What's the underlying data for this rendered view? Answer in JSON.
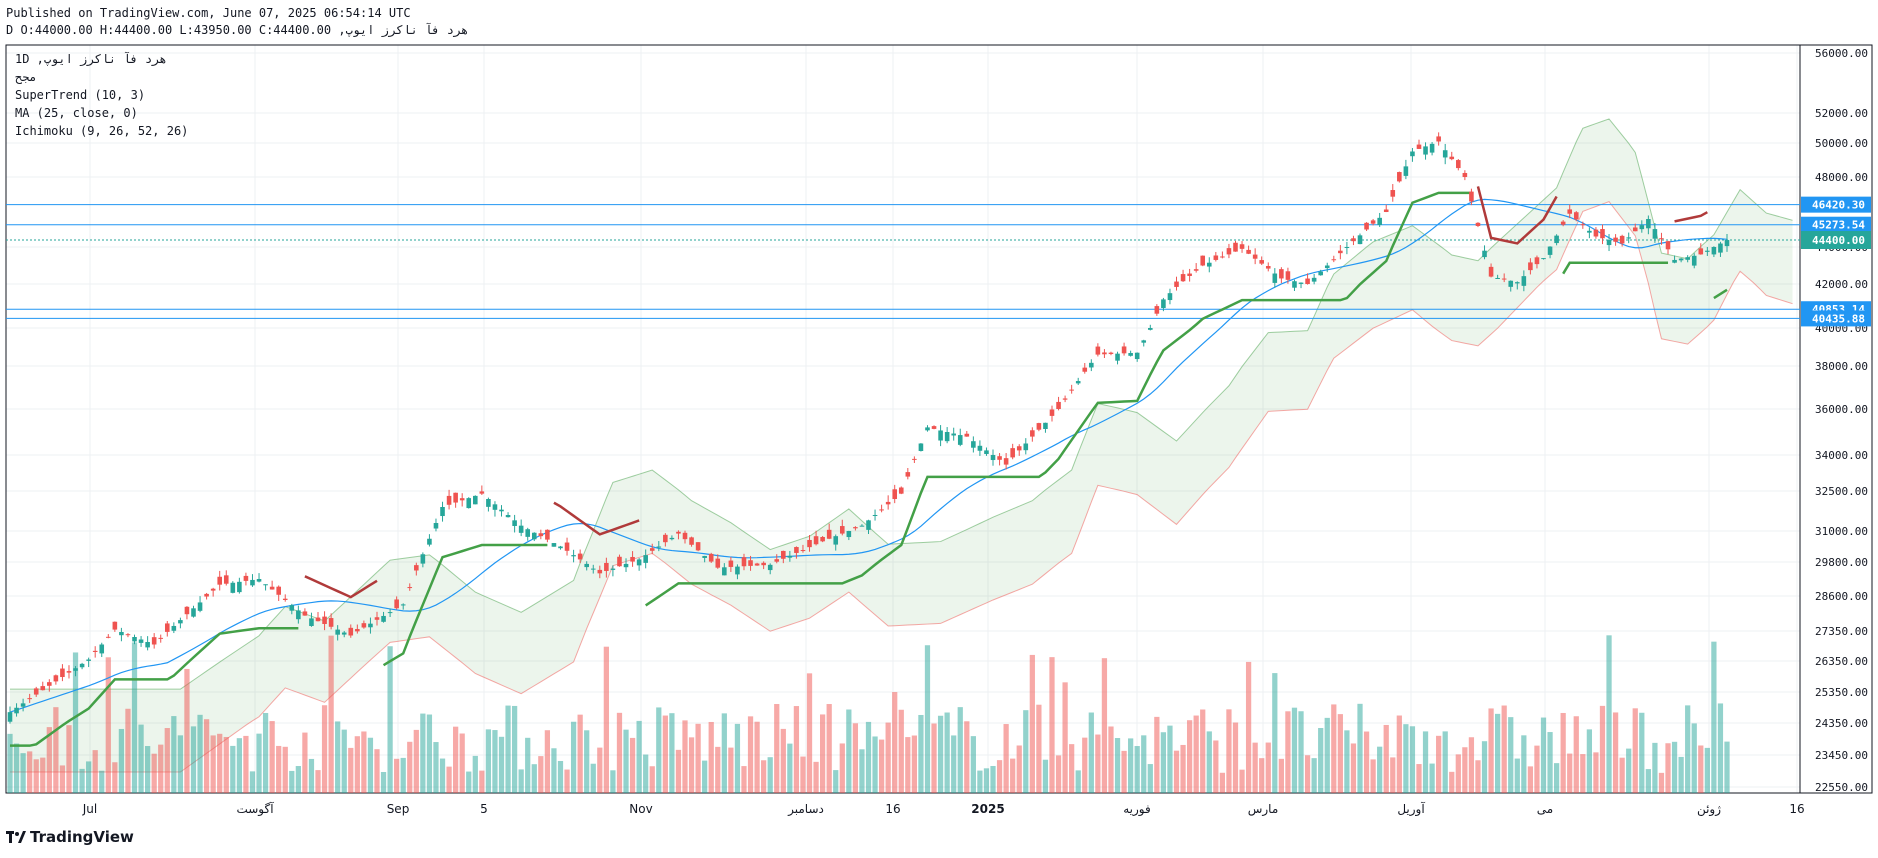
{
  "header": {
    "published": "Published on TradingView.com, June 07, 2025 06:54:14 UTC",
    "ohlc": "هرد فآ ناکرز ایوپ, D O:44000.00 H:44400.00 L:43950.00 C:44400.00"
  },
  "legend": {
    "symbol": "هرد فآ ناکرز ایوپ, 1D",
    "exchange": "مجح",
    "indicators": [
      "SuperTrend (10, 3)",
      "MA (25, close, 0)",
      "Ichimoku (9, 26, 52, 26)"
    ]
  },
  "brand": "TradingView",
  "colors": {
    "up": "#26a69a",
    "down": "#ef5350",
    "supertrend_up": "#43a047",
    "supertrend_down": "#b03a3a",
    "ma": "#2196f3",
    "level": "#2196f3"
  },
  "chart_data": {
    "type": "candlestick",
    "price_axis_ticks": [
      56000,
      52000,
      50000,
      48000,
      44000,
      42000,
      40000,
      38000,
      36000,
      34000,
      32500,
      31000,
      29800,
      28600,
      27350,
      26350,
      25350,
      24350,
      23450,
      22550
    ],
    "time_axis_labels": [
      "Jul",
      "آگوست",
      "Sep",
      "5",
      "Nov",
      "دسامبر",
      "16",
      "2025",
      "فوریه",
      "مارس",
      "آوریل",
      "می",
      "ژوئن",
      "16"
    ],
    "last_price": 44400.0,
    "horizontal_levels": [
      46420.3,
      45273.54,
      40853.14,
      40435.88
    ],
    "ohlc_points": [
      {
        "i": 0,
        "c": 24700
      },
      {
        "i": 12,
        "c": 26400
      },
      {
        "i": 16,
        "c": 27400
      },
      {
        "i": 22,
        "c": 26900
      },
      {
        "i": 32,
        "c": 29000
      },
      {
        "i": 38,
        "c": 29200
      },
      {
        "i": 45,
        "c": 27900
      },
      {
        "i": 52,
        "c": 27200
      },
      {
        "i": 60,
        "c": 28300
      },
      {
        "i": 66,
        "c": 31900
      },
      {
        "i": 72,
        "c": 32400
      },
      {
        "i": 78,
        "c": 31200
      },
      {
        "i": 84,
        "c": 30400
      },
      {
        "i": 90,
        "c": 29400
      },
      {
        "i": 96,
        "c": 29900
      },
      {
        "i": 102,
        "c": 30900
      },
      {
        "i": 108,
        "c": 29600
      },
      {
        "i": 116,
        "c": 29700
      },
      {
        "i": 124,
        "c": 30600
      },
      {
        "i": 130,
        "c": 31200
      },
      {
        "i": 136,
        "c": 32400
      },
      {
        "i": 140,
        "c": 35200
      },
      {
        "i": 146,
        "c": 34800
      },
      {
        "i": 152,
        "c": 33600
      },
      {
        "i": 160,
        "c": 36000
      },
      {
        "i": 166,
        "c": 38600
      },
      {
        "i": 172,
        "c": 38700
      },
      {
        "i": 176,
        "c": 41300
      },
      {
        "i": 182,
        "c": 43000
      },
      {
        "i": 188,
        "c": 43900
      },
      {
        "i": 194,
        "c": 42300
      },
      {
        "i": 198,
        "c": 42000
      },
      {
        "i": 204,
        "c": 44000
      },
      {
        "i": 210,
        "c": 46000
      },
      {
        "i": 214,
        "c": 49500
      },
      {
        "i": 218,
        "c": 50100
      },
      {
        "i": 222,
        "c": 48000
      },
      {
        "i": 226,
        "c": 42400
      },
      {
        "i": 230,
        "c": 42100
      },
      {
        "i": 234,
        "c": 43400
      },
      {
        "i": 238,
        "c": 45900
      },
      {
        "i": 242,
        "c": 44600
      },
      {
        "i": 246,
        "c": 44200
      },
      {
        "i": 250,
        "c": 45600
      },
      {
        "i": 254,
        "c": 43300
      },
      {
        "i": 258,
        "c": 43600
      },
      {
        "i": 262,
        "c": 44400
      }
    ],
    "candle_count": 263
  }
}
